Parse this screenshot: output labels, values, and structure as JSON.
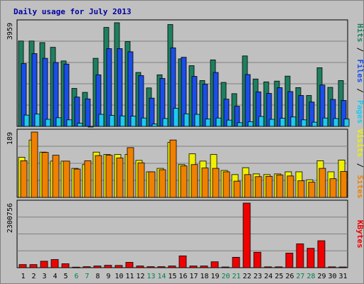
{
  "chart_data": {
    "type": "bar",
    "title": "Daily usage for July 2013",
    "categories": [
      "1",
      "2",
      "3",
      "4",
      "5",
      "6",
      "7",
      "8",
      "9",
      "10",
      "11",
      "12",
      "13",
      "14",
      "15",
      "16",
      "17",
      "18",
      "19",
      "20",
      "21",
      "22",
      "23",
      "24",
      "25",
      "26",
      "27",
      "28",
      "29",
      "30",
      "31"
    ],
    "weekend_days": [
      "6",
      "7",
      "13",
      "14",
      "20",
      "21",
      "27",
      "28"
    ],
    "panels": [
      {
        "name": "hits-files-pages",
        "y_max_label": "3959",
        "ylim": [
          0,
          3959
        ],
        "series": [
          {
            "name": "Hits",
            "color": "#1e8060",
            "values": [
              3260,
              3260,
              3200,
              3020,
              2500,
              1450,
              1300,
              2600,
              3780,
              3959,
              3240,
              2060,
              1470,
              1970,
              3890,
              2580,
              2320,
              1750,
              2540,
              1680,
              1250,
              2690,
              1810,
              1700,
              1730,
              1920,
              1480,
              1180,
              2240,
              1490,
              1750
            ]
          },
          {
            "name": "Files",
            "color": "#1a4ee8",
            "values": [
              2400,
              2780,
              2600,
              2440,
              2380,
              1120,
              1050,
              1970,
              2970,
              2970,
              2850,
              1940,
              1080,
              1830,
              3000,
              2640,
              1910,
              1610,
              2060,
              1040,
              770,
              1980,
              1320,
              1260,
              1480,
              1330,
              1180,
              930,
              1580,
              1030,
              990
            ]
          },
          {
            "name": "Pages",
            "color": "#20c8f0",
            "values": [
              430,
              470,
              270,
              330,
              250,
              120,
              0,
              460,
              420,
              400,
              390,
              320,
              90,
              300,
              690,
              480,
              460,
              280,
              320,
              240,
              140,
              180,
              380,
              270,
              310,
              360,
              250,
              160,
              320,
              300,
              280
            ]
          }
        ],
        "legend_labels": [
          "Pages",
          "Files",
          "Hits"
        ]
      },
      {
        "name": "sites-visits",
        "y_max_label": "189",
        "ylim": [
          0,
          189
        ],
        "series": [
          {
            "name": "Visits",
            "color": "#f0f000",
            "values": [
              116,
              166,
              131,
              105,
              105,
              84,
              95,
              131,
              124,
              124,
              124,
              107,
              74,
              84,
              159,
              95,
              126,
              105,
              124,
              78,
              66,
              86,
              68,
              66,
              68,
              74,
              74,
              51,
              106,
              74,
              108
            ]
          },
          {
            "name": "Sites",
            "color": "#f08000",
            "values": [
              106,
              189,
              130,
              122,
              105,
              82,
              106,
              121,
              122,
              114,
              144,
              100,
              74,
              80,
              166,
              91,
              95,
              85,
              84,
              74,
              47,
              66,
              60,
              61,
              65,
              62,
              48,
              44,
              84,
              54,
              75
            ]
          }
        ],
        "legend_labels": [
          "Sites",
          "Visits"
        ]
      },
      {
        "name": "kbytes",
        "y_max_label": "2300756",
        "ylim": [
          0,
          2300756
        ],
        "series": [
          {
            "name": "KBytes",
            "color": "#f00000",
            "values": [
              110000,
              110000,
              230000,
              290000,
              140000,
              20000,
              35000,
              60000,
              85000,
              80000,
              190000,
              60000,
              35000,
              35000,
              60000,
              420000,
              60000,
              60000,
              210000,
              25000,
              370000,
              2300756,
              550000,
              30000,
              30000,
              520000,
              850000,
              690000,
              960000,
              30000,
              25000
            ]
          }
        ],
        "legend_labels": [
          "KBytes"
        ]
      }
    ]
  },
  "colors": {
    "title": "#0000a0",
    "panel_bg": "#c0c0c0",
    "axis_label": "#000000",
    "weekend_label": "#00804a",
    "grid": "#808080"
  }
}
